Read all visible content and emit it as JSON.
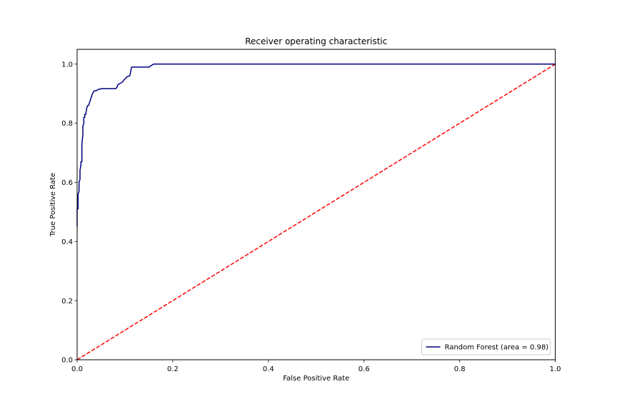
{
  "chart_data": {
    "type": "line",
    "title": "Receiver operating characteristic",
    "xlabel": "False Positive Rate",
    "ylabel": "True Positive Rate",
    "xlim": [
      0.0,
      1.0
    ],
    "ylim": [
      0.0,
      1.05
    ],
    "xticks": [
      0.0,
      0.2,
      0.4,
      0.6,
      0.8,
      1.0
    ],
    "yticks": [
      0.0,
      0.2,
      0.4,
      0.6,
      0.8,
      1.0
    ],
    "xtick_labels": [
      "0.0",
      "0.2",
      "0.4",
      "0.6",
      "0.8",
      "1.0"
    ],
    "ytick_labels": [
      "0.0",
      "0.2",
      "0.4",
      "0.6",
      "0.8",
      "1.0"
    ],
    "grid": false,
    "legend_position": "lower right",
    "series": [
      {
        "name": "Random Forest (area = 0.98)",
        "color": "#000080",
        "style": "solid",
        "x": [
          0.0,
          0.0,
          0.002,
          0.002,
          0.004,
          0.004,
          0.006,
          0.006,
          0.008,
          0.008,
          0.01,
          0.01,
          0.012,
          0.012,
          0.014,
          0.014,
          0.016,
          0.016,
          0.018,
          0.02,
          0.022,
          0.024,
          0.026,
          0.028,
          0.03,
          0.03,
          0.032,
          0.034,
          0.036,
          0.04,
          0.045,
          0.048,
          0.05,
          0.06,
          0.07,
          0.08,
          0.083,
          0.085,
          0.09,
          0.095,
          0.1,
          0.105,
          0.11,
          0.112,
          0.114,
          0.12,
          0.13,
          0.15,
          0.155,
          0.16,
          0.17,
          0.2,
          0.4,
          0.6,
          0.8,
          1.0
        ],
        "y": [
          0.45,
          0.51,
          0.51,
          0.56,
          0.57,
          0.6,
          0.61,
          0.64,
          0.66,
          0.67,
          0.67,
          0.73,
          0.76,
          0.79,
          0.8,
          0.82,
          0.82,
          0.83,
          0.83,
          0.85,
          0.86,
          0.86,
          0.87,
          0.88,
          0.89,
          0.89,
          0.9,
          0.905,
          0.91,
          0.91,
          0.915,
          0.915,
          0.917,
          0.917,
          0.917,
          0.917,
          0.92,
          0.93,
          0.935,
          0.94,
          0.95,
          0.958,
          0.96,
          0.975,
          0.99,
          0.99,
          0.99,
          0.99,
          0.995,
          1.0,
          1.0,
          1.0,
          1.0,
          1.0,
          1.0,
          1.0
        ]
      },
      {
        "name": "",
        "color": "#ff0000",
        "style": "dashed",
        "x": [
          0.0,
          1.0
        ],
        "y": [
          0.0,
          1.0
        ]
      }
    ]
  }
}
